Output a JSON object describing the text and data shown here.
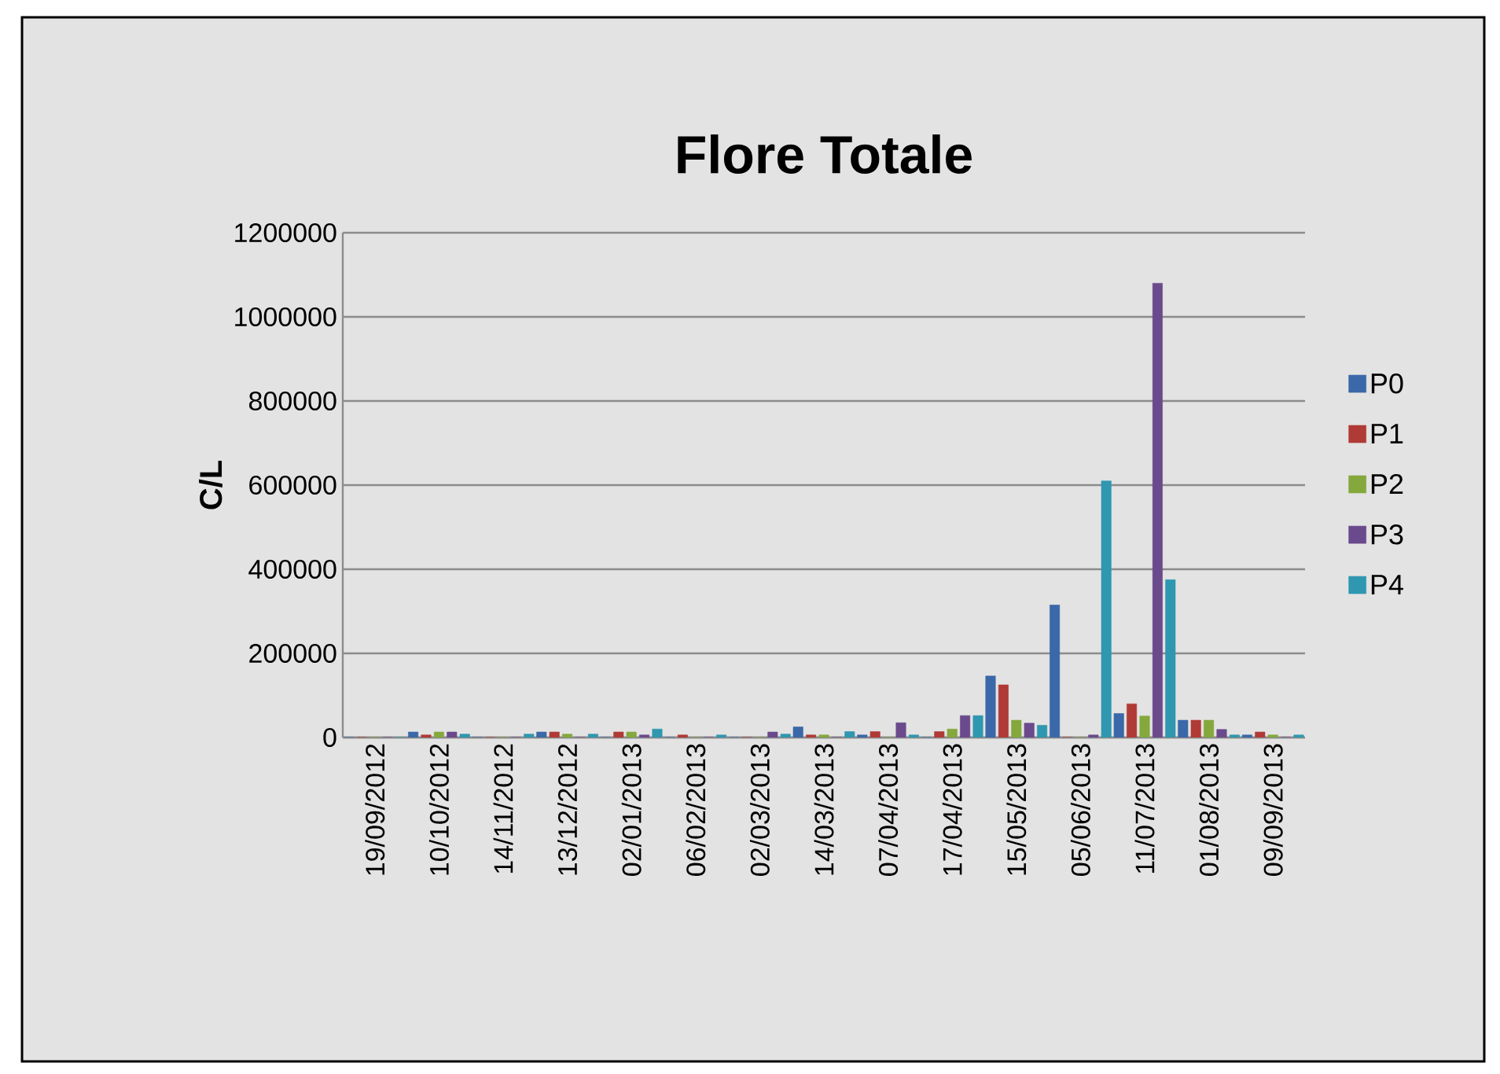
{
  "chart_data": {
    "type": "bar",
    "title": "Flore Totale",
    "ylabel": "C/L",
    "categories": [
      "19/09/2012",
      "10/10/2012",
      "14/11/2012",
      "13/12/2012",
      "02/01/2013",
      "06/02/2013",
      "02/03/2013",
      "14/03/2013",
      "07/04/2013",
      "17/04/2013",
      "15/05/2013",
      "05/06/2013",
      "11/07/2013",
      "01/08/2013",
      "09/09/2013"
    ],
    "series": [
      {
        "name": "P0",
        "color": "#3a68a8",
        "values": [
          0,
          13000,
          0,
          13000,
          0,
          0,
          0,
          25000,
          6000,
          0,
          146000,
          315000,
          57000,
          41000,
          6000
        ]
      },
      {
        "name": "P1",
        "color": "#b03a36",
        "values": [
          0,
          6000,
          0,
          13000,
          13000,
          6000,
          0,
          6000,
          14000,
          14000,
          125000,
          0,
          80000,
          41000,
          13000
        ]
      },
      {
        "name": "P2",
        "color": "#84a83c",
        "values": [
          0,
          13000,
          0,
          8000,
          13000,
          0,
          0,
          6000,
          0,
          20000,
          41000,
          0,
          51000,
          41000,
          6000
        ]
      },
      {
        "name": "P3",
        "color": "#6a4a8c",
        "values": [
          0,
          13000,
          0,
          0,
          6000,
          0,
          13000,
          0,
          35000,
          52000,
          34000,
          6000,
          1080000,
          19000,
          0
        ]
      },
      {
        "name": "P4",
        "color": "#2f97b0",
        "values": [
          0,
          8000,
          8000,
          8000,
          20000,
          6000,
          8000,
          14000,
          6000,
          52000,
          29000,
          610000,
          375000,
          6000,
          6000
        ]
      }
    ],
    "ylim": [
      0,
      1200000
    ],
    "yticks": [
      0,
      200000,
      400000,
      600000,
      800000,
      1000000,
      1200000
    ],
    "grid": "y",
    "legend": "right"
  }
}
